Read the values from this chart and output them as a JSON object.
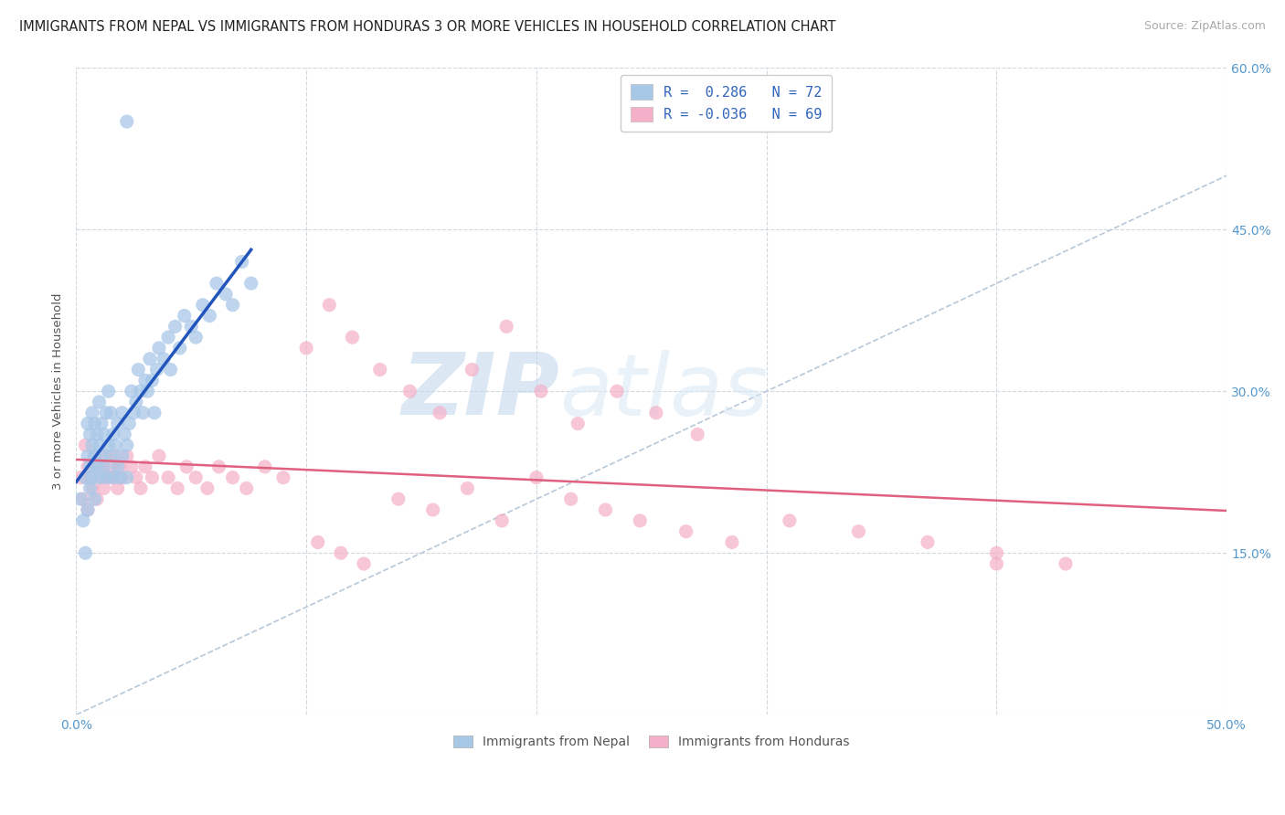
{
  "title": "IMMIGRANTS FROM NEPAL VS IMMIGRANTS FROM HONDURAS 3 OR MORE VEHICLES IN HOUSEHOLD CORRELATION CHART",
  "source": "Source: ZipAtlas.com",
  "ylabel": "3 or more Vehicles in Household",
  "xlim": [
    0.0,
    0.5
  ],
  "ylim": [
    0.0,
    0.6
  ],
  "xticks": [
    0.0,
    0.1,
    0.2,
    0.3,
    0.4,
    0.5
  ],
  "yticks": [
    0.0,
    0.15,
    0.3,
    0.45,
    0.6
  ],
  "nepal_R": 0.286,
  "nepal_N": 72,
  "honduras_R": -0.036,
  "honduras_N": 69,
  "nepal_color": "#a8c8e8",
  "honduras_color": "#f4b0c8",
  "nepal_line_color": "#2255bb",
  "honduras_line_color": "#e06080",
  "diagonal_color": "#b8c8d8",
  "background_color": "#ffffff",
  "grid_color": "#d0d8e0",
  "nepal_x": [
    0.002,
    0.003,
    0.004,
    0.004,
    0.005,
    0.005,
    0.005,
    0.006,
    0.006,
    0.006,
    0.007,
    0.007,
    0.007,
    0.008,
    0.008,
    0.008,
    0.009,
    0.009,
    0.01,
    0.01,
    0.01,
    0.011,
    0.011,
    0.012,
    0.012,
    0.013,
    0.013,
    0.014,
    0.014,
    0.015,
    0.015,
    0.016,
    0.016,
    0.017,
    0.018,
    0.018,
    0.019,
    0.02,
    0.02,
    0.021,
    0.022,
    0.022,
    0.023,
    0.024,
    0.025,
    0.026,
    0.027,
    0.028,
    0.029,
    0.03,
    0.031,
    0.032,
    0.033,
    0.034,
    0.035,
    0.036,
    0.038,
    0.04,
    0.041,
    0.043,
    0.045,
    0.047,
    0.05,
    0.052,
    0.055,
    0.058,
    0.061,
    0.065,
    0.068,
    0.072,
    0.076,
    0.022
  ],
  "nepal_y": [
    0.2,
    0.18,
    0.15,
    0.22,
    0.24,
    0.27,
    0.19,
    0.23,
    0.26,
    0.21,
    0.25,
    0.28,
    0.22,
    0.24,
    0.27,
    0.2,
    0.23,
    0.26,
    0.22,
    0.25,
    0.29,
    0.24,
    0.27,
    0.23,
    0.26,
    0.22,
    0.28,
    0.25,
    0.3,
    0.24,
    0.28,
    0.22,
    0.26,
    0.25,
    0.23,
    0.27,
    0.22,
    0.24,
    0.28,
    0.26,
    0.22,
    0.25,
    0.27,
    0.3,
    0.28,
    0.29,
    0.32,
    0.3,
    0.28,
    0.31,
    0.3,
    0.33,
    0.31,
    0.28,
    0.32,
    0.34,
    0.33,
    0.35,
    0.32,
    0.36,
    0.34,
    0.37,
    0.36,
    0.35,
    0.38,
    0.37,
    0.4,
    0.39,
    0.38,
    0.42,
    0.4,
    0.55
  ],
  "honduras_x": [
    0.002,
    0.003,
    0.004,
    0.005,
    0.005,
    0.006,
    0.007,
    0.008,
    0.009,
    0.01,
    0.011,
    0.012,
    0.013,
    0.014,
    0.015,
    0.016,
    0.017,
    0.018,
    0.019,
    0.02,
    0.022,
    0.024,
    0.026,
    0.028,
    0.03,
    0.033,
    0.036,
    0.04,
    0.044,
    0.048,
    0.052,
    0.057,
    0.062,
    0.068,
    0.074,
    0.082,
    0.09,
    0.1,
    0.11,
    0.12,
    0.132,
    0.145,
    0.158,
    0.172,
    0.187,
    0.202,
    0.218,
    0.235,
    0.252,
    0.27,
    0.14,
    0.155,
    0.17,
    0.185,
    0.2,
    0.215,
    0.23,
    0.245,
    0.265,
    0.285,
    0.31,
    0.34,
    0.37,
    0.4,
    0.43,
    0.105,
    0.115,
    0.125,
    0.4
  ],
  "honduras_y": [
    0.22,
    0.2,
    0.25,
    0.23,
    0.19,
    0.22,
    0.21,
    0.24,
    0.2,
    0.23,
    0.22,
    0.21,
    0.24,
    0.22,
    0.23,
    0.22,
    0.24,
    0.21,
    0.23,
    0.22,
    0.24,
    0.23,
    0.22,
    0.21,
    0.23,
    0.22,
    0.24,
    0.22,
    0.21,
    0.23,
    0.22,
    0.21,
    0.23,
    0.22,
    0.21,
    0.23,
    0.22,
    0.34,
    0.38,
    0.35,
    0.32,
    0.3,
    0.28,
    0.32,
    0.36,
    0.3,
    0.27,
    0.3,
    0.28,
    0.26,
    0.2,
    0.19,
    0.21,
    0.18,
    0.22,
    0.2,
    0.19,
    0.18,
    0.17,
    0.16,
    0.18,
    0.17,
    0.16,
    0.15,
    0.14,
    0.16,
    0.15,
    0.14,
    0.14
  ]
}
